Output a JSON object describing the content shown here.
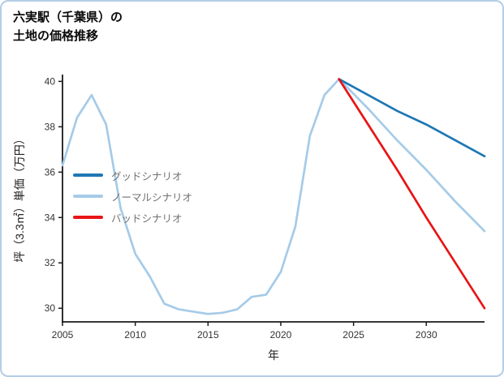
{
  "title": {
    "line1": "六実駅（千葉県）の",
    "line2": "土地の価格推移"
  },
  "colors": {
    "frame_border": "#b4cde6",
    "axis": "#1a1a1a",
    "tick_label": "#333333",
    "axis_label": "#222222",
    "legend_text": "#707070",
    "good_scenario": "#1f77b4",
    "normal_scenario": "#a5cbe8",
    "bad_scenario": "#e81416"
  },
  "legend": {
    "items": [
      {
        "label": "グッドシナリオ",
        "color": "#1f77b4"
      },
      {
        "label": "ノーマルシナリオ",
        "color": "#a5cbe8"
      },
      {
        "label": "バッドシナリオ",
        "color": "#e81416"
      }
    ]
  },
  "chart_data": {
    "type": "line",
    "title": "六実駅（千葉県）の土地の価格推移",
    "xlabel": "年",
    "ylabel": "坪（3.3㎡）単価（万円）",
    "xlim": [
      2005,
      2034
    ],
    "ylim": [
      29.4,
      40.3
    ],
    "x_ticks": [
      2005,
      2010,
      2015,
      2020,
      2025,
      2030
    ],
    "y_ticks": [
      30,
      32,
      34,
      36,
      38,
      40
    ],
    "grid": false,
    "legend_position": "center-left",
    "draw_order": [
      1,
      0,
      2
    ],
    "series": [
      {
        "id": "good",
        "name": "グッドシナリオ",
        "color": "#1f77b4",
        "x": [
          2024,
          2026,
          2028,
          2030,
          2032,
          2034
        ],
        "y": [
          40.1,
          39.4,
          38.7,
          38.1,
          37.4,
          36.7
        ]
      },
      {
        "id": "normal",
        "name": "ノーマルシナリオ",
        "color": "#a5cbe8",
        "x": [
          2005,
          2006,
          2007,
          2008,
          2009,
          2010,
          2011,
          2012,
          2013,
          2014,
          2015,
          2016,
          2017,
          2018,
          2019,
          2020,
          2021,
          2022,
          2023,
          2024,
          2026,
          2028,
          2030,
          2032,
          2034
        ],
        "y": [
          36.3,
          38.4,
          39.4,
          38.1,
          34.4,
          32.4,
          31.4,
          30.2,
          29.95,
          29.85,
          29.75,
          29.8,
          29.95,
          30.5,
          30.6,
          31.6,
          33.6,
          37.6,
          39.4,
          40.1,
          38.8,
          37.4,
          36.1,
          34.7,
          33.4
        ]
      },
      {
        "id": "bad",
        "name": "バッドシナリオ",
        "color": "#e81416",
        "x": [
          2024,
          2026,
          2028,
          2030,
          2032,
          2034
        ],
        "y": [
          40.1,
          38.1,
          36.1,
          34.0,
          32.0,
          30.0
        ]
      }
    ]
  }
}
